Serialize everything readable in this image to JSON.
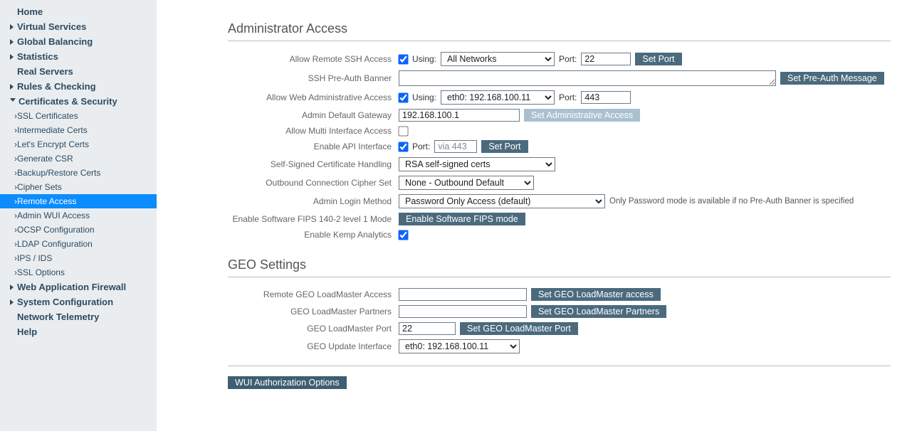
{
  "sidebar": {
    "items": [
      {
        "label": "Home",
        "type": "plain"
      },
      {
        "label": "Virtual Services",
        "type": "caret"
      },
      {
        "label": "Global Balancing",
        "type": "caret"
      },
      {
        "label": "Statistics",
        "type": "caret"
      },
      {
        "label": "Real Servers",
        "type": "plain"
      },
      {
        "label": "Rules & Checking",
        "type": "caret"
      },
      {
        "label": "Certificates & Security",
        "type": "caret-open",
        "children": [
          {
            "label": "SSL Certificates"
          },
          {
            "label": "Intermediate Certs"
          },
          {
            "label": "Let's Encrypt Certs"
          },
          {
            "label": "Generate CSR"
          },
          {
            "label": "Backup/Restore Certs"
          },
          {
            "label": "Cipher Sets"
          },
          {
            "label": "Remote Access",
            "active": true
          },
          {
            "label": "Admin WUI Access"
          },
          {
            "label": "OCSP Configuration"
          },
          {
            "label": "LDAP Configuration"
          },
          {
            "label": "IPS / IDS"
          },
          {
            "label": "SSL Options"
          }
        ]
      },
      {
        "label": "Web Application Firewall",
        "type": "caret"
      },
      {
        "label": "System Configuration",
        "type": "caret"
      },
      {
        "label": "Network Telemetry",
        "type": "plain"
      },
      {
        "label": "Help",
        "type": "plain"
      }
    ]
  },
  "admin": {
    "section_title": "Administrator Access",
    "ssh": {
      "label": "Allow Remote SSH Access",
      "checked": true,
      "using_label": "Using:",
      "network": "All Networks",
      "port_label": "Port:",
      "port": "22",
      "set_port_btn": "Set Port"
    },
    "preauth": {
      "label": "SSH Pre-Auth Banner",
      "value": "",
      "btn": "Set Pre-Auth Message"
    },
    "webadmin": {
      "label": "Allow Web Administrative Access",
      "checked": true,
      "using_label": "Using:",
      "iface": "eth0: 192.168.100.11",
      "port_label": "Port:",
      "port": "443"
    },
    "gateway": {
      "label": "Admin Default Gateway",
      "value": "192.168.100.1",
      "btn": "Set Administrative Access"
    },
    "multi": {
      "label": "Allow Multi Interface Access",
      "checked": false
    },
    "api": {
      "label": "Enable API Interface",
      "checked": true,
      "port_label": "Port:",
      "port": "via 443",
      "btn": "Set Port"
    },
    "selfcert": {
      "label": "Self-Signed Certificate Handling",
      "value": "RSA self-signed certs"
    },
    "outcipher": {
      "label": "Outbound Connection Cipher Set",
      "value": "None - Outbound Default"
    },
    "login": {
      "label": "Admin Login Method",
      "value": "Password Only Access (default)",
      "note": "Only Password mode is available if no Pre-Auth Banner is specified"
    },
    "fips": {
      "label": "Enable Software FIPS 140-2 level 1 Mode",
      "btn": "Enable Software FIPS mode"
    },
    "analytics": {
      "label": "Enable Kemp Analytics",
      "checked": true
    }
  },
  "geo": {
    "section_title": "GEO Settings",
    "access": {
      "label": "Remote GEO LoadMaster Access",
      "value": "",
      "btn": "Set GEO LoadMaster access"
    },
    "partners": {
      "label": "GEO LoadMaster Partners",
      "value": "",
      "btn": "Set GEO LoadMaster Partners"
    },
    "port": {
      "label": "GEO LoadMaster Port",
      "value": "22",
      "btn": "Set GEO LoadMaster Port"
    },
    "iface": {
      "label": "GEO Update Interface",
      "value": "eth0: 192.168.100.11"
    }
  },
  "footer": {
    "wui_btn": "WUI Authorization Options"
  },
  "style": {
    "btn_bg": "#4b6a7e",
    "btn_disabled_bg": "#a9c0ce",
    "accent": "#0b8cff",
    "sidebar_bg": "#e9edef"
  }
}
